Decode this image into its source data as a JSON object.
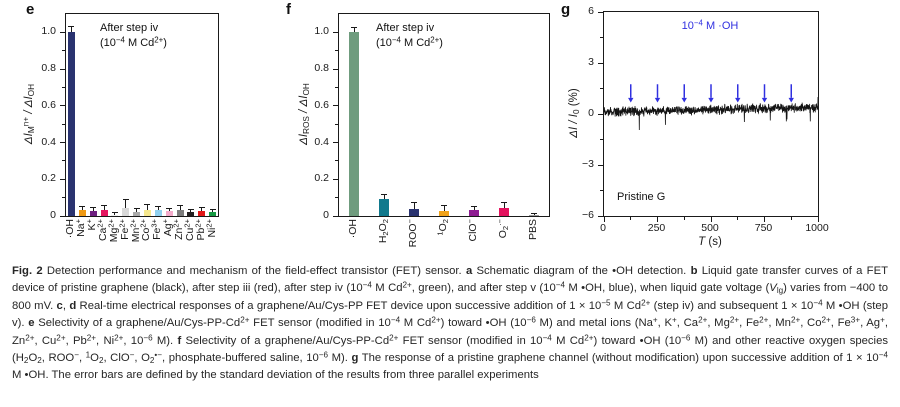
{
  "figure": {
    "panels": [
      "e",
      "f",
      "g"
    ]
  },
  "chart_data": [
    {
      "type": "bar",
      "panel_label": "e",
      "annotation": "After step iv (10−4 M Cd2+)",
      "annotation_line1": [
        {
          "t": "After step iv"
        }
      ],
      "annotation_line2": [
        {
          "t": "(10"
        },
        {
          "t": "−4",
          "sup": true
        },
        {
          "t": " M Cd"
        },
        {
          "t": "2+",
          "sup": true
        },
        {
          "t": ")"
        }
      ],
      "ylabel": "ΔIMn+ / ΔIOH",
      "ylabel_segments": [
        {
          "t": "Δ",
          "i": true
        },
        {
          "t": "I",
          "i": true
        },
        {
          "t": "M",
          "sub": true
        },
        {
          "t": "n+",
          "sup": true
        },
        {
          "t": " / Δ",
          "i": true
        },
        {
          "t": "I",
          "i": true
        },
        {
          "t": "OH",
          "sub": true
        }
      ],
      "ylim": [
        0,
        1.1
      ],
      "yticks": [
        {
          "v": 0,
          "t": "0"
        },
        {
          "v": 0.2,
          "t": "0.2"
        },
        {
          "v": 0.4,
          "t": "0.4"
        },
        {
          "v": 0.6,
          "t": "0.6"
        },
        {
          "v": 0.8,
          "t": "0.8"
        },
        {
          "v": 1.0,
          "t": "1.0"
        }
      ],
      "yminor": [
        0.1,
        0.3,
        0.5,
        0.7,
        0.9
      ],
      "categories": [
        "·OH",
        "Na+",
        "K+",
        "Ca2+",
        "Mg2+",
        "Fe2+",
        "Mn2+",
        "Co2+",
        "Fe3+",
        "Ag+",
        "Zn2+",
        "Cu2+",
        "Pb2+",
        "Ni2+"
      ],
      "categories_segments": [
        [
          {
            "t": "·OH"
          }
        ],
        [
          {
            "t": "Na"
          },
          {
            "t": "+",
            "sup": true
          }
        ],
        [
          {
            "t": "K"
          },
          {
            "t": "+",
            "sup": true
          }
        ],
        [
          {
            "t": "Ca"
          },
          {
            "t": "2+",
            "sup": true
          }
        ],
        [
          {
            "t": "Mg"
          },
          {
            "t": "2+",
            "sup": true
          }
        ],
        [
          {
            "t": "Fe"
          },
          {
            "t": "2+",
            "sup": true
          }
        ],
        [
          {
            "t": "Mn"
          },
          {
            "t": "2+",
            "sup": true
          }
        ],
        [
          {
            "t": "Co"
          },
          {
            "t": "2+",
            "sup": true
          }
        ],
        [
          {
            "t": "Fe"
          },
          {
            "t": "3+",
            "sup": true
          }
        ],
        [
          {
            "t": "Ag"
          },
          {
            "t": "+",
            "sup": true
          }
        ],
        [
          {
            "t": "Zn"
          },
          {
            "t": "2+",
            "sup": true
          }
        ],
        [
          {
            "t": "Cu"
          },
          {
            "t": "2+",
            "sup": true
          }
        ],
        [
          {
            "t": "Pb"
          },
          {
            "t": "2+",
            "sup": true
          }
        ],
        [
          {
            "t": "Ni"
          },
          {
            "t": "2+",
            "sup": true
          }
        ]
      ],
      "values": [
        1.0,
        0.03,
        0.025,
        0.03,
        0.005,
        0.045,
        0.02,
        0.03,
        0.03,
        0.025,
        0.03,
        0.02,
        0.025,
        0.02
      ],
      "errors": [
        0.03,
        0.02,
        0.02,
        0.025,
        0.012,
        0.045,
        0.022,
        0.035,
        0.02,
        0.015,
        0.025,
        0.015,
        0.02,
        0.015
      ],
      "colors": [
        "#2a3370",
        "#f09a14",
        "#6e1f80",
        "#e4155f",
        "#ededed",
        "#d8d8d8",
        "#ababab",
        "#f6e88e",
        "#90d0ef",
        "#f3abcb",
        "#7d7d7d",
        "#232021",
        "#e11919",
        "#169a43"
      ]
    },
    {
      "type": "bar",
      "panel_label": "f",
      "annotation": "After step iv (10−4 M Cd2+)",
      "annotation_line1": [
        {
          "t": "After step iv"
        }
      ],
      "annotation_line2": [
        {
          "t": "(10"
        },
        {
          "t": "−4",
          "sup": true
        },
        {
          "t": " M Cd"
        },
        {
          "t": "2+",
          "sup": true
        },
        {
          "t": ")"
        }
      ],
      "ylabel": "ΔIROS / ΔIOH",
      "ylabel_segments": [
        {
          "t": "Δ",
          "i": true
        },
        {
          "t": "I",
          "i": true
        },
        {
          "t": "ROS",
          "sub": true
        },
        {
          "t": " / Δ",
          "i": true
        },
        {
          "t": "I",
          "i": true
        },
        {
          "t": "OH",
          "sub": true
        }
      ],
      "ylim": [
        0,
        1.1
      ],
      "yticks": [
        {
          "v": 0,
          "t": "0"
        },
        {
          "v": 0.2,
          "t": "0.2"
        },
        {
          "v": 0.4,
          "t": "0.4"
        },
        {
          "v": 0.6,
          "t": "0.6"
        },
        {
          "v": 0.8,
          "t": "0.8"
        },
        {
          "v": 1.0,
          "t": "1.0"
        }
      ],
      "yminor": [
        0.1,
        0.3,
        0.5,
        0.7,
        0.9
      ],
      "categories": [
        "·OH",
        "H2O2",
        "ROO−",
        "1O2",
        "ClO−",
        "O2·−",
        "PBS"
      ],
      "categories_segments": [
        [
          {
            "t": "·OH"
          }
        ],
        [
          {
            "t": "H"
          },
          {
            "t": "2",
            "sub": true
          },
          {
            "t": "O"
          },
          {
            "t": "2",
            "sub": true
          }
        ],
        [
          {
            "t": "ROO"
          },
          {
            "t": "−",
            "sup": true
          }
        ],
        [
          {
            "t": "1",
            "sup": true
          },
          {
            "t": "O"
          },
          {
            "t": "2",
            "sub": true
          }
        ],
        [
          {
            "t": "ClO"
          },
          {
            "t": "−",
            "sup": true
          }
        ],
        [
          {
            "t": "O"
          },
          {
            "t": "2",
            "sub": true
          },
          {
            "t": "·−",
            "sup": true
          }
        ],
        [
          {
            "t": "PBS"
          }
        ]
      ],
      "values": [
        1.0,
        0.09,
        0.04,
        0.025,
        0.035,
        0.045,
        0.004
      ],
      "errors": [
        0.025,
        0.025,
        0.035,
        0.03,
        0.015,
        0.03,
        0.012
      ],
      "colors": [
        "#6f9c7e",
        "#11798d",
        "#2a3370",
        "#f0a21a",
        "#8e1c92",
        "#e4135f",
        "#9a9a9a"
      ]
    },
    {
      "type": "line",
      "panel_label": "g",
      "annotation": "10−4 M ·OH",
      "annotation_segments": [
        {
          "t": "10"
        },
        {
          "t": "−4",
          "sup": true
        },
        {
          "t": " M ·OH"
        }
      ],
      "annotation_color": "#3030e0",
      "corner_label": "Pristine G",
      "ylabel": "ΔI / I0 (%)",
      "ylabel_segments": [
        {
          "t": "ΔI",
          "i": true
        },
        {
          "t": " / ",
          "i": true
        },
        {
          "t": "I",
          "i": true
        },
        {
          "t": "0",
          "sub": true
        },
        {
          "t": " (%)"
        }
      ],
      "xlabel": "T (s)",
      "xlabel_segments": [
        {
          "t": "T",
          "i": true
        },
        {
          "t": " (s)"
        }
      ],
      "ylim": [
        -6,
        6
      ],
      "xlim": [
        0,
        1000
      ],
      "yticks": [
        {
          "v": -6,
          "t": "−6"
        },
        {
          "v": -3,
          "t": "−3"
        },
        {
          "v": 0,
          "t": "0"
        },
        {
          "v": 3,
          "t": "3"
        },
        {
          "v": 6,
          "t": "6"
        }
      ],
      "yminor": [
        -4.5,
        -1.5,
        1.5,
        4.5
      ],
      "xticks": [
        {
          "v": 0,
          "t": "0"
        },
        {
          "v": 250,
          "t": "250"
        },
        {
          "v": 500,
          "t": "500"
        },
        {
          "v": 750,
          "t": "750"
        },
        {
          "v": 1000,
          "t": "1000"
        }
      ],
      "xminor": [
        125,
        375,
        625,
        875
      ],
      "oh_addition_times": [
        125,
        250,
        375,
        500,
        625,
        750,
        875
      ],
      "arrow_color": "#3030e0",
      "trace_color": "#141414",
      "trace": {
        "start": 0.12,
        "end": 0.38,
        "noise": 0.33,
        "spike_depth": 0.55,
        "end_spike": 1.0,
        "seed": 987654,
        "description": "flat noisy baseline near 0% with slight upward drift; no response to ·OH additions"
      }
    }
  ],
  "caption": {
    "text_plain": "Fig. 2 Detection performance and mechanism of the field-effect transistor (FET) sensor. a Schematic diagram of the •OH detection. b Liquid gate transfer curves of a FET device of pristine graphene (black), after step iii (red), after step iv (10−4 M Cd2+, green), and after step v (10−4 M •OH, blue), when liquid gate voltage (Vlg) varies from −400 to 800 mV. c, d Real-time electrical responses of a graphene/Au/Cys-PP FET device upon successive addition of 1 × 10−5 M Cd2+ (step iv) and subsequent 1 × 10−4 M •OH (step v). e Selectivity of a graphene/Au/Cys-PP-Cd2+ FET sensor (modified in 10−4 M Cd2+) toward •OH (10−6 M) and metal ions (Na+, K+, Ca2+, Mg2+, Fe2+, Mn2+, Co2+, Fe3+, Ag+, Zn2+, Cu2+, Pb2+, Ni2+, 10−6 M). f Selectivity of a graphene/Au/Cys-PP-Cd2+ FET sensor (modified in 10−4 M Cd2+) toward •OH (10−6 M) and other reactive oxygen species (H2O2, ROO−, 1O2, ClO−, O2•−, phosphate-buffered saline, 10−6 M). g The response of a pristine graphene channel (without modification) upon successive addition of 1 × 10−4 M •OH. The error bars are defined by the standard deviation of the results from three parallel experiments",
    "segments": [
      {
        "t": "Fig. 2",
        "b": true
      },
      {
        "t": " Detection performance and mechanism of the field-effect transistor (FET) sensor. "
      },
      {
        "t": "a",
        "b": true
      },
      {
        "t": " Schematic diagram of the •OH detection. "
      },
      {
        "t": "b",
        "b": true
      },
      {
        "t": " Liquid gate transfer curves of a FET device of pristine graphene (black), after step iii (red), after step iv (10"
      },
      {
        "t": "−4",
        "sup": true
      },
      {
        "t": " M Cd"
      },
      {
        "t": "2+",
        "sup": true
      },
      {
        "t": ", green), and after step v (10"
      },
      {
        "t": "−4",
        "sup": true
      },
      {
        "t": " M •OH, blue), when liquid gate voltage ("
      },
      {
        "t": "V",
        "i": true
      },
      {
        "t": "lg",
        "sub": true
      },
      {
        "t": ") varies from −400 to 800 mV. "
      },
      {
        "t": "c",
        "b": true
      },
      {
        "t": ", "
      },
      {
        "t": "d",
        "b": true
      },
      {
        "t": " Real-time electrical responses of a graphene/Au/Cys-PP FET device upon successive addition of 1 × 10"
      },
      {
        "t": "−5",
        "sup": true
      },
      {
        "t": " M Cd"
      },
      {
        "t": "2+",
        "sup": true
      },
      {
        "t": " (step iv) and subsequent 1 × 10"
      },
      {
        "t": "−4",
        "sup": true
      },
      {
        "t": " M •OH (step v). "
      },
      {
        "t": "e",
        "b": true
      },
      {
        "t": " Selectivity of a graphene/Au/Cys-PP-Cd"
      },
      {
        "t": "2+",
        "sup": true
      },
      {
        "t": " FET sensor (modified in 10"
      },
      {
        "t": "−4",
        "sup": true
      },
      {
        "t": " M Cd"
      },
      {
        "t": "2+",
        "sup": true
      },
      {
        "t": ") toward •OH (10"
      },
      {
        "t": "−6",
        "sup": true
      },
      {
        "t": " M) and metal ions (Na"
      },
      {
        "t": "+",
        "sup": true
      },
      {
        "t": ", K"
      },
      {
        "t": "+",
        "sup": true
      },
      {
        "t": ", Ca"
      },
      {
        "t": "2+",
        "sup": true
      },
      {
        "t": ", Mg"
      },
      {
        "t": "2+",
        "sup": true
      },
      {
        "t": ", Fe"
      },
      {
        "t": "2+",
        "sup": true
      },
      {
        "t": ", Mn"
      },
      {
        "t": "2+",
        "sup": true
      },
      {
        "t": ", Co"
      },
      {
        "t": "2+",
        "sup": true
      },
      {
        "t": ", Fe"
      },
      {
        "t": "3+",
        "sup": true
      },
      {
        "t": ", Ag"
      },
      {
        "t": "+",
        "sup": true
      },
      {
        "t": ", Zn"
      },
      {
        "t": "2+",
        "sup": true
      },
      {
        "t": ", Cu"
      },
      {
        "t": "2+",
        "sup": true
      },
      {
        "t": ", Pb"
      },
      {
        "t": "2+",
        "sup": true
      },
      {
        "t": ", Ni"
      },
      {
        "t": "2+",
        "sup": true
      },
      {
        "t": ", 10"
      },
      {
        "t": "−6",
        "sup": true
      },
      {
        "t": " M). "
      },
      {
        "t": "f",
        "b": true
      },
      {
        "t": " Selectivity of a graphene/Au/Cys-PP-Cd"
      },
      {
        "t": "2+",
        "sup": true
      },
      {
        "t": " FET sensor (modified in 10"
      },
      {
        "t": "−4",
        "sup": true
      },
      {
        "t": " M Cd"
      },
      {
        "t": "2+",
        "sup": true
      },
      {
        "t": ") toward •OH (10"
      },
      {
        "t": "−6",
        "sup": true
      },
      {
        "t": " M) and other reactive oxygen species (H"
      },
      {
        "t": "2",
        "sub": true
      },
      {
        "t": "O"
      },
      {
        "t": "2",
        "sub": true
      },
      {
        "t": ", ROO"
      },
      {
        "t": "−",
        "sup": true
      },
      {
        "t": ", "
      },
      {
        "t": "1",
        "sup": true
      },
      {
        "t": "O"
      },
      {
        "t": "2",
        "sub": true
      },
      {
        "t": ", ClO"
      },
      {
        "t": "−",
        "sup": true
      },
      {
        "t": ", O"
      },
      {
        "t": "2",
        "sub": true
      },
      {
        "t": "•−",
        "sup": true
      },
      {
        "t": ", phosphate-buffered saline, 10"
      },
      {
        "t": "−6",
        "sup": true
      },
      {
        "t": " M). "
      },
      {
        "t": "g",
        "b": true
      },
      {
        "t": " The response of a pristine graphene channel (without modification) upon successive addition of 1 × 10"
      },
      {
        "t": "−4",
        "sup": true
      },
      {
        "t": " M •OH. The error bars are defined by the standard deviation of the results from three parallel experiments"
      }
    ]
  }
}
